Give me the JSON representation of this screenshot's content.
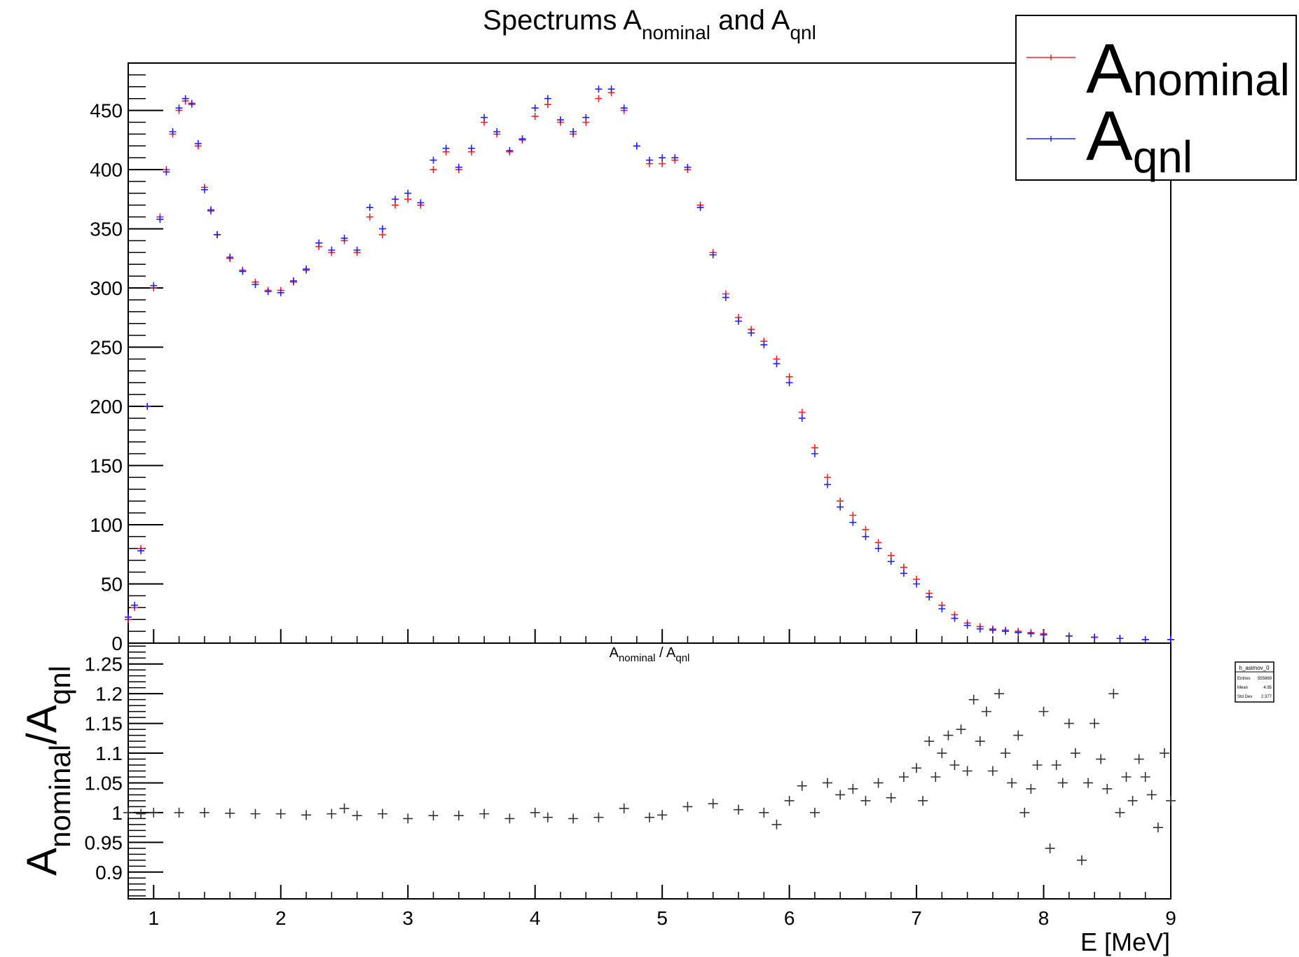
{
  "chart_data": [
    {
      "type": "scatter",
      "title": "Spectrums A",
      "title_parts": [
        {
          "text": "Spectrums A",
          "sub": "nominal"
        },
        {
          "text": " and A",
          "sub": "qnl"
        }
      ],
      "xlabel": "",
      "ylabel": "",
      "xlim": [
        0.8,
        9.0
      ],
      "ylim": [
        0,
        490
      ],
      "y_ticks": [
        0,
        50,
        100,
        150,
        200,
        250,
        300,
        350,
        400,
        450
      ],
      "grid": false,
      "legend_position": "top-right",
      "marker": "+",
      "series": [
        {
          "name": "nominal",
          "label_main": "A",
          "label_sub": "nominal",
          "color": "#ff2020",
          "x": [
            0.8,
            0.85,
            0.9,
            0.95,
            1.0,
            1.05,
            1.1,
            1.15,
            1.2,
            1.25,
            1.3,
            1.35,
            1.4,
            1.45,
            1.5,
            1.6,
            1.7,
            1.8,
            1.9,
            2.0,
            2.1,
            2.2,
            2.3,
            2.4,
            2.5,
            2.6,
            2.7,
            2.8,
            2.9,
            3.0,
            3.1,
            3.2,
            3.3,
            3.4,
            3.5,
            3.6,
            3.7,
            3.8,
            3.9,
            4.0,
            4.1,
            4.2,
            4.3,
            4.4,
            4.5,
            4.6,
            4.7,
            4.8,
            4.9,
            5.0,
            5.1,
            5.2,
            5.3,
            5.4,
            5.5,
            5.6,
            5.7,
            5.8,
            5.9,
            6.0,
            6.1,
            6.2,
            6.3,
            6.4,
            6.5,
            6.6,
            6.7,
            6.8,
            6.9,
            7.0,
            7.1,
            7.2,
            7.3,
            7.4,
            7.5,
            7.6,
            7.7,
            7.8,
            7.9,
            8.0,
            8.2,
            8.4,
            8.6,
            8.8,
            9.0
          ],
          "y": [
            20,
            30,
            80,
            200,
            300,
            360,
            400,
            430,
            450,
            458,
            455,
            420,
            385,
            365,
            345,
            325,
            315,
            305,
            298,
            298,
            305,
            315,
            335,
            330,
            340,
            330,
            360,
            345,
            370,
            375,
            370,
            400,
            415,
            400,
            415,
            440,
            430,
            415,
            425,
            445,
            455,
            440,
            430,
            440,
            460,
            465,
            450,
            420,
            405,
            405,
            408,
            400,
            370,
            330,
            295,
            275,
            265,
            255,
            240,
            225,
            195,
            165,
            140,
            120,
            108,
            96,
            85,
            74,
            64,
            54,
            42,
            32,
            24,
            17,
            14,
            12,
            11,
            10,
            9,
            8,
            6,
            5,
            4,
            3,
            3
          ]
        },
        {
          "name": "qnl",
          "label_main": "A",
          "label_sub": "qnl",
          "color": "#2020ff",
          "x": [
            0.8,
            0.85,
            0.9,
            0.95,
            1.0,
            1.05,
            1.1,
            1.15,
            1.2,
            1.25,
            1.3,
            1.35,
            1.4,
            1.45,
            1.5,
            1.6,
            1.7,
            1.8,
            1.9,
            2.0,
            2.1,
            2.2,
            2.3,
            2.4,
            2.5,
            2.6,
            2.7,
            2.8,
            2.9,
            3.0,
            3.1,
            3.2,
            3.3,
            3.4,
            3.5,
            3.6,
            3.7,
            3.8,
            3.9,
            4.0,
            4.1,
            4.2,
            4.3,
            4.4,
            4.5,
            4.6,
            4.7,
            4.8,
            4.9,
            5.0,
            5.1,
            5.2,
            5.3,
            5.4,
            5.5,
            5.6,
            5.7,
            5.8,
            5.9,
            6.0,
            6.1,
            6.2,
            6.3,
            6.4,
            6.5,
            6.6,
            6.7,
            6.8,
            6.9,
            7.0,
            7.1,
            7.2,
            7.3,
            7.4,
            7.5,
            7.6,
            7.7,
            7.8,
            7.9,
            8.0,
            8.2,
            8.4,
            8.6,
            8.8,
            9.0
          ],
          "y": [
            22,
            32,
            78,
            200,
            302,
            358,
            398,
            432,
            452,
            460,
            456,
            422,
            383,
            366,
            345,
            326,
            314,
            303,
            297,
            296,
            306,
            316,
            338,
            332,
            342,
            332,
            368,
            350,
            375,
            380,
            372,
            408,
            418,
            402,
            418,
            444,
            432,
            416,
            426,
            452,
            460,
            442,
            432,
            444,
            468,
            468,
            452,
            420,
            408,
            410,
            410,
            402,
            368,
            328,
            292,
            272,
            262,
            252,
            236,
            220,
            190,
            160,
            134,
            115,
            102,
            90,
            80,
            69,
            59,
            50,
            39,
            29,
            21,
            15,
            12,
            11,
            10,
            9,
            8,
            7,
            6,
            5,
            4,
            3,
            3
          ]
        }
      ]
    },
    {
      "type": "scatter",
      "title": "A",
      "title_parts": [
        {
          "text": "A",
          "sub": "nominal"
        },
        {
          "text": " / A",
          "sub": "qnl"
        }
      ],
      "ylabel_parts": [
        {
          "text": "A",
          "sub": "nominal"
        },
        {
          "text": "/A",
          "sub": "qnl"
        }
      ],
      "xlabel": "E [MeV]",
      "xlim": [
        0.8,
        9.0
      ],
      "ylim": [
        0.855,
        1.285
      ],
      "x_ticks": [
        1,
        2,
        3,
        4,
        5,
        6,
        7,
        8,
        9
      ],
      "y_ticks": [
        0.9,
        0.95,
        1,
        1.05,
        1.1,
        1.15,
        1.2,
        1.25
      ],
      "y_tick_labels": [
        "0.9",
        "0.95",
        "1",
        "1.05",
        "1.1",
        "1.15",
        "1.2",
        "1.25"
      ],
      "grid": false,
      "marker": "+",
      "series": [
        {
          "color": "#333333",
          "x": [
            0.8,
            0.9,
            1.0,
            1.2,
            1.4,
            1.6,
            1.8,
            2.0,
            2.2,
            2.4,
            2.5,
            2.6,
            2.8,
            3.0,
            3.2,
            3.4,
            3.6,
            3.8,
            4.0,
            4.1,
            4.3,
            4.5,
            4.7,
            4.9,
            5.0,
            5.2,
            5.4,
            5.6,
            5.8,
            5.9,
            6.0,
            6.1,
            6.2,
            6.3,
            6.4,
            6.5,
            6.6,
            6.7,
            6.8,
            6.9,
            7.0,
            7.05,
            7.1,
            7.15,
            7.2,
            7.25,
            7.3,
            7.35,
            7.4,
            7.45,
            7.5,
            7.55,
            7.6,
            7.65,
            7.7,
            7.75,
            7.8,
            7.85,
            7.9,
            7.95,
            8.0,
            8.05,
            8.1,
            8.15,
            8.2,
            8.25,
            8.3,
            8.35,
            8.4,
            8.45,
            8.5,
            8.55,
            8.6,
            8.65,
            8.7,
            8.75,
            8.8,
            8.85,
            8.9,
            8.95,
            9.0
          ],
          "y": [
            1.0,
            0.998,
            1.0,
            1.0,
            1.0,
            0.999,
            0.998,
            0.998,
            0.996,
            0.998,
            1.007,
            0.995,
            0.998,
            0.99,
            0.995,
            0.995,
            0.998,
            0.99,
            1.0,
            0.992,
            0.99,
            0.992,
            1.007,
            0.992,
            0.996,
            1.01,
            1.015,
            1.005,
            1.0,
            0.98,
            1.02,
            1.045,
            1.0,
            1.05,
            1.03,
            1.04,
            1.02,
            1.05,
            1.025,
            1.06,
            1.075,
            1.02,
            1.12,
            1.06,
            1.1,
            1.13,
            1.08,
            1.14,
            1.07,
            1.19,
            1.12,
            1.17,
            1.07,
            1.2,
            1.1,
            1.05,
            1.13,
            1.0,
            1.04,
            1.08,
            1.17,
            0.94,
            1.08,
            1.05,
            1.15,
            1.1,
            0.92,
            1.05,
            1.15,
            1.09,
            1.04,
            1.2,
            1.0,
            1.06,
            1.02,
            1.09,
            1.06,
            1.03,
            0.975,
            1.1,
            1.02
          ]
        }
      ]
    }
  ],
  "stats_box": {
    "title": "h_asimov_0",
    "rows": [
      {
        "label": "Entries",
        "value": "555869"
      },
      {
        "label": "Mean",
        "value": "4.95"
      },
      {
        "label": "Std Dev",
        "value": "2.377"
      }
    ]
  }
}
